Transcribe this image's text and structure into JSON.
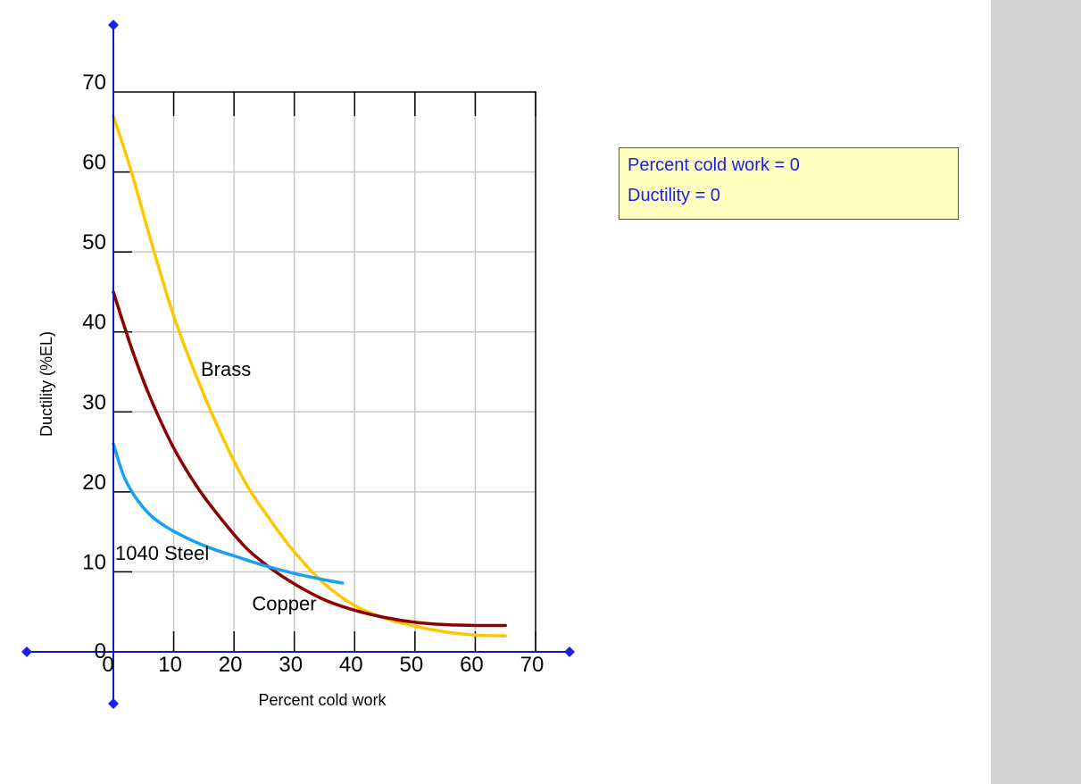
{
  "chart_data": {
    "type": "line",
    "xlabel": "Percent cold work",
    "ylabel": "Ductility (%EL)",
    "xlim": [
      0,
      70
    ],
    "ylim": [
      0,
      70
    ],
    "x_ticks": [
      "0",
      "10",
      "20",
      "30",
      "40",
      "50",
      "60",
      "70"
    ],
    "y_ticks": [
      "0",
      "10",
      "20",
      "30",
      "40",
      "50",
      "60",
      "70"
    ],
    "grid": true,
    "series": [
      {
        "name": "Brass",
        "color": "#ffc700",
        "points": [
          [
            0,
            67
          ],
          [
            3,
            60
          ],
          [
            6,
            52
          ],
          [
            10,
            42
          ],
          [
            14,
            34
          ],
          [
            18,
            27
          ],
          [
            22,
            21
          ],
          [
            26,
            16.5
          ],
          [
            30,
            12.5
          ],
          [
            35,
            8.5
          ],
          [
            40,
            5.8
          ],
          [
            45,
            4.2
          ],
          [
            50,
            3.2
          ],
          [
            55,
            2.5
          ],
          [
            60,
            2.1
          ],
          [
            65,
            2.0
          ]
        ]
      },
      {
        "name": "Copper",
        "color": "#8b0000",
        "points": [
          [
            0,
            45
          ],
          [
            3,
            38
          ],
          [
            6,
            32
          ],
          [
            10,
            25.5
          ],
          [
            14,
            20.5
          ],
          [
            18,
            16.5
          ],
          [
            22,
            13
          ],
          [
            26,
            10.5
          ],
          [
            30,
            8.5
          ],
          [
            35,
            6.5
          ],
          [
            40,
            5.2
          ],
          [
            45,
            4.3
          ],
          [
            50,
            3.7
          ],
          [
            55,
            3.4
          ],
          [
            60,
            3.3
          ],
          [
            65,
            3.3
          ]
        ]
      },
      {
        "name": "1040 Steel",
        "color": "#1aa0f0",
        "points": [
          [
            0,
            26
          ],
          [
            2,
            21.5
          ],
          [
            5,
            18
          ],
          [
            8,
            16
          ],
          [
            12,
            14.3
          ],
          [
            16,
            13
          ],
          [
            20,
            12
          ],
          [
            25,
            10.8
          ],
          [
            30,
            9.8
          ],
          [
            35,
            9.0
          ],
          [
            38,
            8.6
          ]
        ]
      }
    ],
    "series_labels": [
      {
        "text": "Brass",
        "x": 14.5,
        "y": 34.5
      },
      {
        "text": "Copper",
        "x": 23,
        "y": 5.2
      },
      {
        "text": "1040 Steel",
        "x": 0.3,
        "y": 11.5
      }
    ]
  },
  "readout": {
    "cold_work_text": "Percent cold work = 0",
    "ductility_text": "Ductility = 0"
  },
  "colors": {
    "axis_blue": "#1414d2",
    "handle_blue": "#1e1ef0",
    "grid": "#c8c8c8",
    "readout_bg": "#ffffc0",
    "side_panel": "#d4d4d4"
  }
}
